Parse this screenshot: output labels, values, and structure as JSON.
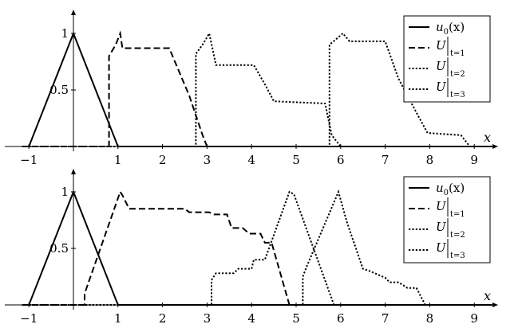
{
  "chart_data": [
    {
      "type": "line",
      "title": "",
      "xlabel": "x",
      "ylabel": "",
      "xlim": [
        -1.1,
        9.4
      ],
      "ylim": [
        0,
        1.15
      ],
      "xticks": [
        -1,
        1,
        2,
        3,
        4,
        5,
        6,
        7,
        8,
        9
      ],
      "yticks": [
        0.5,
        1
      ],
      "ytick_labels": [
        "0.5",
        "1"
      ],
      "grid": false,
      "legend_position": "top-right",
      "series": [
        {
          "name": "u0(x)",
          "style": "solid",
          "x": [
            -1.15,
            -1,
            0,
            1,
            9.4
          ],
          "y": [
            0,
            0,
            1,
            0,
            0
          ]
        },
        {
          "name": "U|t=1",
          "style": "dashed",
          "x": [
            -1.15,
            0.8,
            0.8,
            0.95,
            1.05,
            1.1,
            2.15,
            2.6,
            2.9,
            3.0,
            9.4
          ],
          "y": [
            0,
            0,
            0.8,
            0.9,
            1.0,
            0.87,
            0.87,
            0.45,
            0.1,
            0,
            0
          ]
        },
        {
          "name": "U|t=2",
          "style": "dotted",
          "x": [
            -1.15,
            2.75,
            2.75,
            2.9,
            3.05,
            3.2,
            4.05,
            4.3,
            4.5,
            5.65,
            5.8,
            6.0,
            9.4
          ],
          "y": [
            0,
            0,
            0.82,
            0.9,
            1.0,
            0.72,
            0.72,
            0.55,
            0.4,
            0.38,
            0.1,
            0,
            0
          ]
        },
        {
          "name": "U|t=3",
          "style": "dotted",
          "x": [
            -1.15,
            5.75,
            5.75,
            5.9,
            6.05,
            6.2,
            7.0,
            7.3,
            7.7,
            7.95,
            8.7,
            8.9,
            9.4
          ],
          "y": [
            0,
            0,
            0.9,
            0.95,
            1.0,
            0.93,
            0.93,
            0.6,
            0.3,
            0.12,
            0.1,
            0.0,
            0
          ]
        }
      ]
    },
    {
      "type": "line",
      "title": "",
      "xlabel": "x",
      "ylabel": "",
      "xlim": [
        -1.1,
        9.4
      ],
      "ylim": [
        0,
        1.15
      ],
      "xticks": [
        -1,
        1,
        2,
        3,
        4,
        5,
        6,
        7,
        8,
        9
      ],
      "yticks": [
        0.5,
        1
      ],
      "ytick_labels": [
        "0.5",
        "1"
      ],
      "grid": false,
      "legend_position": "top-right",
      "series": [
        {
          "name": "u0(x)",
          "style": "solid",
          "x": [
            -1.15,
            -1,
            0,
            1,
            9.4
          ],
          "y": [
            0,
            0,
            1,
            0,
            0
          ]
        },
        {
          "name": "U|t=1",
          "style": "dashed",
          "x": [
            -1.15,
            0.25,
            0.25,
            1.05,
            1.1,
            1.25,
            2.5,
            2.6,
            3.05,
            3.15,
            3.45,
            3.55,
            3.8,
            3.95,
            4.2,
            4.3,
            4.45,
            4.85,
            9.4
          ],
          "y": [
            0,
            0,
            0.1,
            1.0,
            0.97,
            0.85,
            0.85,
            0.82,
            0.82,
            0.8,
            0.8,
            0.68,
            0.68,
            0.63,
            0.63,
            0.55,
            0.55,
            0,
            0
          ]
        },
        {
          "name": "U|t=2",
          "style": "dotted",
          "x": [
            -1.15,
            3.1,
            3.1,
            3.2,
            3.6,
            3.7,
            4.0,
            4.05,
            4.3,
            4.85,
            4.95,
            5.85,
            9.4
          ],
          "y": [
            0,
            0,
            0.22,
            0.28,
            0.28,
            0.32,
            0.32,
            0.4,
            0.4,
            1.0,
            0.98,
            0,
            0
          ]
        },
        {
          "name": "U|t=3",
          "style": "dotted",
          "x": [
            -1.15,
            5.15,
            5.15,
            5.25,
            5.95,
            6.15,
            6.5,
            6.65,
            7.0,
            7.1,
            7.3,
            7.5,
            7.7,
            7.9,
            9.4
          ],
          "y": [
            0,
            0,
            0.25,
            0.35,
            1.0,
            0.72,
            0.32,
            0.3,
            0.24,
            0.2,
            0.2,
            0.15,
            0.15,
            0.0,
            0
          ]
        }
      ]
    }
  ],
  "legend": {
    "main_symbol": "u",
    "main_subscript": "0",
    "main_arg": "(x)",
    "stage_symbol": "U",
    "stage_subscripts": [
      "t=1",
      "t=2",
      "t=3"
    ]
  }
}
